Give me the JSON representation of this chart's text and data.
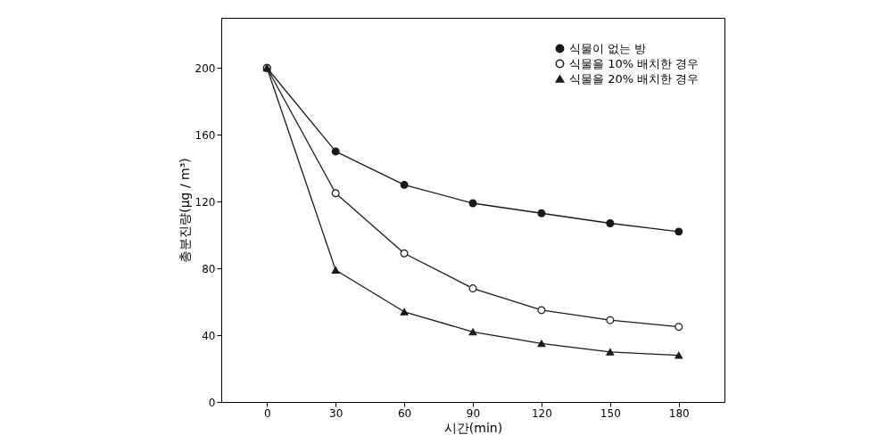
{
  "chart_data": {
    "type": "line",
    "xlabel": "시간(min)",
    "ylabel": "총분진량(μg / m³)",
    "x": [
      0,
      30,
      60,
      90,
      120,
      150,
      180
    ],
    "series": [
      {
        "name": "식물이 없는 방",
        "color": "#1a1a1a",
        "marker": "circle",
        "values": [
          200,
          150,
          130,
          119,
          113,
          107,
          102
        ]
      },
      {
        "name": "식물을 10% 배치한 경우",
        "color": "#1a1a1a",
        "marker": "circle-open",
        "values": [
          200,
          125,
          89,
          68,
          55,
          49,
          45
        ]
      },
      {
        "name": "식물을 20% 배치한 경우",
        "color": "#1a1a1a",
        "marker": "triangle",
        "values": [
          200,
          79,
          54,
          42,
          35,
          30,
          28
        ]
      }
    ],
    "xlim": [
      -20,
      200
    ],
    "xticks": [
      0,
      30,
      60,
      90,
      120,
      150,
      180
    ],
    "ylim": [
      0,
      230
    ],
    "yticks": [
      0,
      40,
      80,
      120,
      160,
      200
    ],
    "grid": false,
    "legend": "top right",
    "line_style": "solid"
  }
}
